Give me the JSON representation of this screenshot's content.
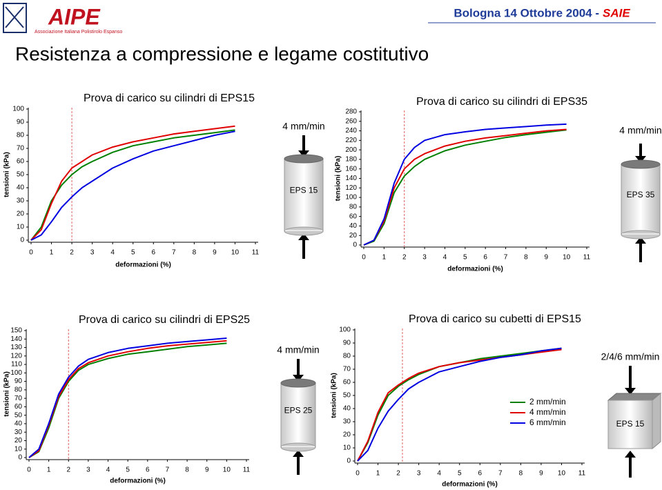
{
  "header": {
    "logo": "AIPE",
    "logo_subtitle": "Associazione Italiana Polistirolo Espanso",
    "event": "Bologna 14 Ottobre 2004 -",
    "event_highlight": "SAIE",
    "title": "Resistenza a compressione e legame costitutivo"
  },
  "specimens": [
    {
      "speed": "4 mm/min",
      "label": "EPS 15"
    },
    {
      "speed": "4 mm/min",
      "label": "EPS 35"
    },
    {
      "speed": "4 mm/min",
      "label": "EPS 25"
    },
    {
      "speed": "2/4/6 mm/min",
      "label": "EPS 15"
    }
  ],
  "chart_data": [
    {
      "type": "line",
      "title": "Prova di carico su cilindri di EPS15",
      "x_label": "deformazioni (%)",
      "y_label": "tensioni (kPa)",
      "x": [
        0,
        0.5,
        1,
        1.5,
        2,
        2.5,
        3,
        4,
        5,
        6,
        7,
        8,
        9,
        10
      ],
      "series": [
        {
          "color": "#008000",
          "values": [
            0,
            10,
            30,
            42,
            50,
            56,
            60,
            67,
            72,
            75,
            78,
            80,
            82,
            84
          ]
        },
        {
          "color": "#e00000",
          "values": [
            0,
            8,
            28,
            45,
            55,
            60,
            65,
            71,
            75,
            78,
            81,
            83,
            85,
            87
          ]
        },
        {
          "color": "#0000e0",
          "values": [
            0,
            4,
            14,
            25,
            33,
            40,
            45,
            55,
            62,
            68,
            72,
            76,
            80,
            83
          ]
        }
      ],
      "xlim": [
        0,
        11
      ],
      "xticks": [
        0,
        1,
        2,
        3,
        4,
        5,
        6,
        7,
        8,
        9,
        10,
        11
      ],
      "ylim": [
        0,
        100
      ],
      "yticks": [
        0,
        10,
        20,
        30,
        40,
        50,
        60,
        70,
        80,
        90,
        100
      ],
      "reference_x": 2
    },
    {
      "type": "line",
      "title": "Prova di carico su cilindri di EPS35",
      "x_label": "deformazioni (%)",
      "y_label": "tensioni (kPa)",
      "x": [
        0,
        0.5,
        1,
        1.5,
        2,
        2.5,
        3,
        4,
        5,
        6,
        7,
        8,
        9,
        10
      ],
      "series": [
        {
          "color": "#008000",
          "values": [
            0,
            8,
            45,
            110,
            145,
            165,
            180,
            198,
            210,
            218,
            226,
            232,
            237,
            242
          ]
        },
        {
          "color": "#e00000",
          "values": [
            0,
            10,
            50,
            120,
            160,
            180,
            192,
            208,
            218,
            225,
            230,
            235,
            240,
            243
          ]
        },
        {
          "color": "#0000e0",
          "values": [
            0,
            10,
            55,
            130,
            180,
            205,
            220,
            232,
            238,
            243,
            246,
            249,
            252,
            254
          ]
        }
      ],
      "xlim": [
        0,
        11
      ],
      "xticks": [
        0,
        1,
        2,
        3,
        4,
        5,
        6,
        7,
        8,
        9,
        10,
        11
      ],
      "ylim": [
        0,
        280
      ],
      "yticks": [
        0,
        20,
        40,
        60,
        80,
        100,
        120,
        140,
        160,
        180,
        200,
        220,
        240,
        260,
        280
      ],
      "reference_x": 2
    },
    {
      "type": "line",
      "title": "Prova di carico su cilindri di EPS25",
      "x_label": "deformazioni (%)",
      "y_label": "tensioni (kPa)",
      "x": [
        0,
        0.5,
        1,
        1.5,
        2,
        2.5,
        3,
        4,
        5,
        6,
        7,
        8,
        9,
        10
      ],
      "series": [
        {
          "color": "#008000",
          "values": [
            0,
            7,
            35,
            70,
            90,
            103,
            110,
            117,
            122,
            125,
            128,
            131,
            133,
            135
          ]
        },
        {
          "color": "#e00000",
          "values": [
            0,
            8,
            38,
            72,
            92,
            105,
            112,
            120,
            125,
            129,
            132,
            134,
            136,
            138
          ]
        },
        {
          "color": "#0000e0",
          "values": [
            0,
            10,
            40,
            75,
            95,
            108,
            116,
            124,
            129,
            132,
            135,
            137,
            139,
            141
          ]
        }
      ],
      "xlim": [
        0,
        11
      ],
      "xticks": [
        0,
        1,
        2,
        3,
        4,
        5,
        6,
        7,
        8,
        9,
        10,
        11
      ],
      "ylim": [
        0,
        150
      ],
      "yticks": [
        0,
        10,
        20,
        30,
        40,
        50,
        60,
        70,
        80,
        90,
        100,
        110,
        120,
        130,
        140,
        150
      ],
      "reference_x": 2
    },
    {
      "type": "line",
      "title": "Prova di carico su cubetti di EPS15",
      "x_label": "deformazioni (%)",
      "y_label": "tensioni (kPa)",
      "x": [
        0,
        0.5,
        1,
        1.5,
        2,
        2.5,
        3,
        4,
        5,
        6,
        7,
        8,
        9,
        10
      ],
      "series": [
        {
          "name": "2 mm/min",
          "color": "#008000",
          "values": [
            0,
            14,
            35,
            50,
            57,
            62,
            66,
            72,
            75,
            78,
            80,
            82,
            84,
            86
          ]
        },
        {
          "name": "4 mm/min",
          "color": "#e00000",
          "values": [
            0,
            15,
            37,
            52,
            58,
            63,
            67,
            72,
            75,
            77,
            79,
            81,
            83,
            85
          ]
        },
        {
          "name": "6 mm/min",
          "color": "#0000e0",
          "values": [
            0,
            8,
            25,
            38,
            47,
            55,
            60,
            68,
            72,
            76,
            79,
            81,
            84,
            86
          ]
        }
      ],
      "xlim": [
        0,
        11
      ],
      "xticks": [
        0,
        1,
        2,
        3,
        4,
        5,
        6,
        7,
        8,
        9,
        10,
        11
      ],
      "ylim": [
        0,
        100
      ],
      "yticks": [
        0,
        10,
        20,
        30,
        40,
        50,
        60,
        70,
        80,
        90,
        100
      ],
      "reference_x": 2.2,
      "legend": "right"
    }
  ]
}
